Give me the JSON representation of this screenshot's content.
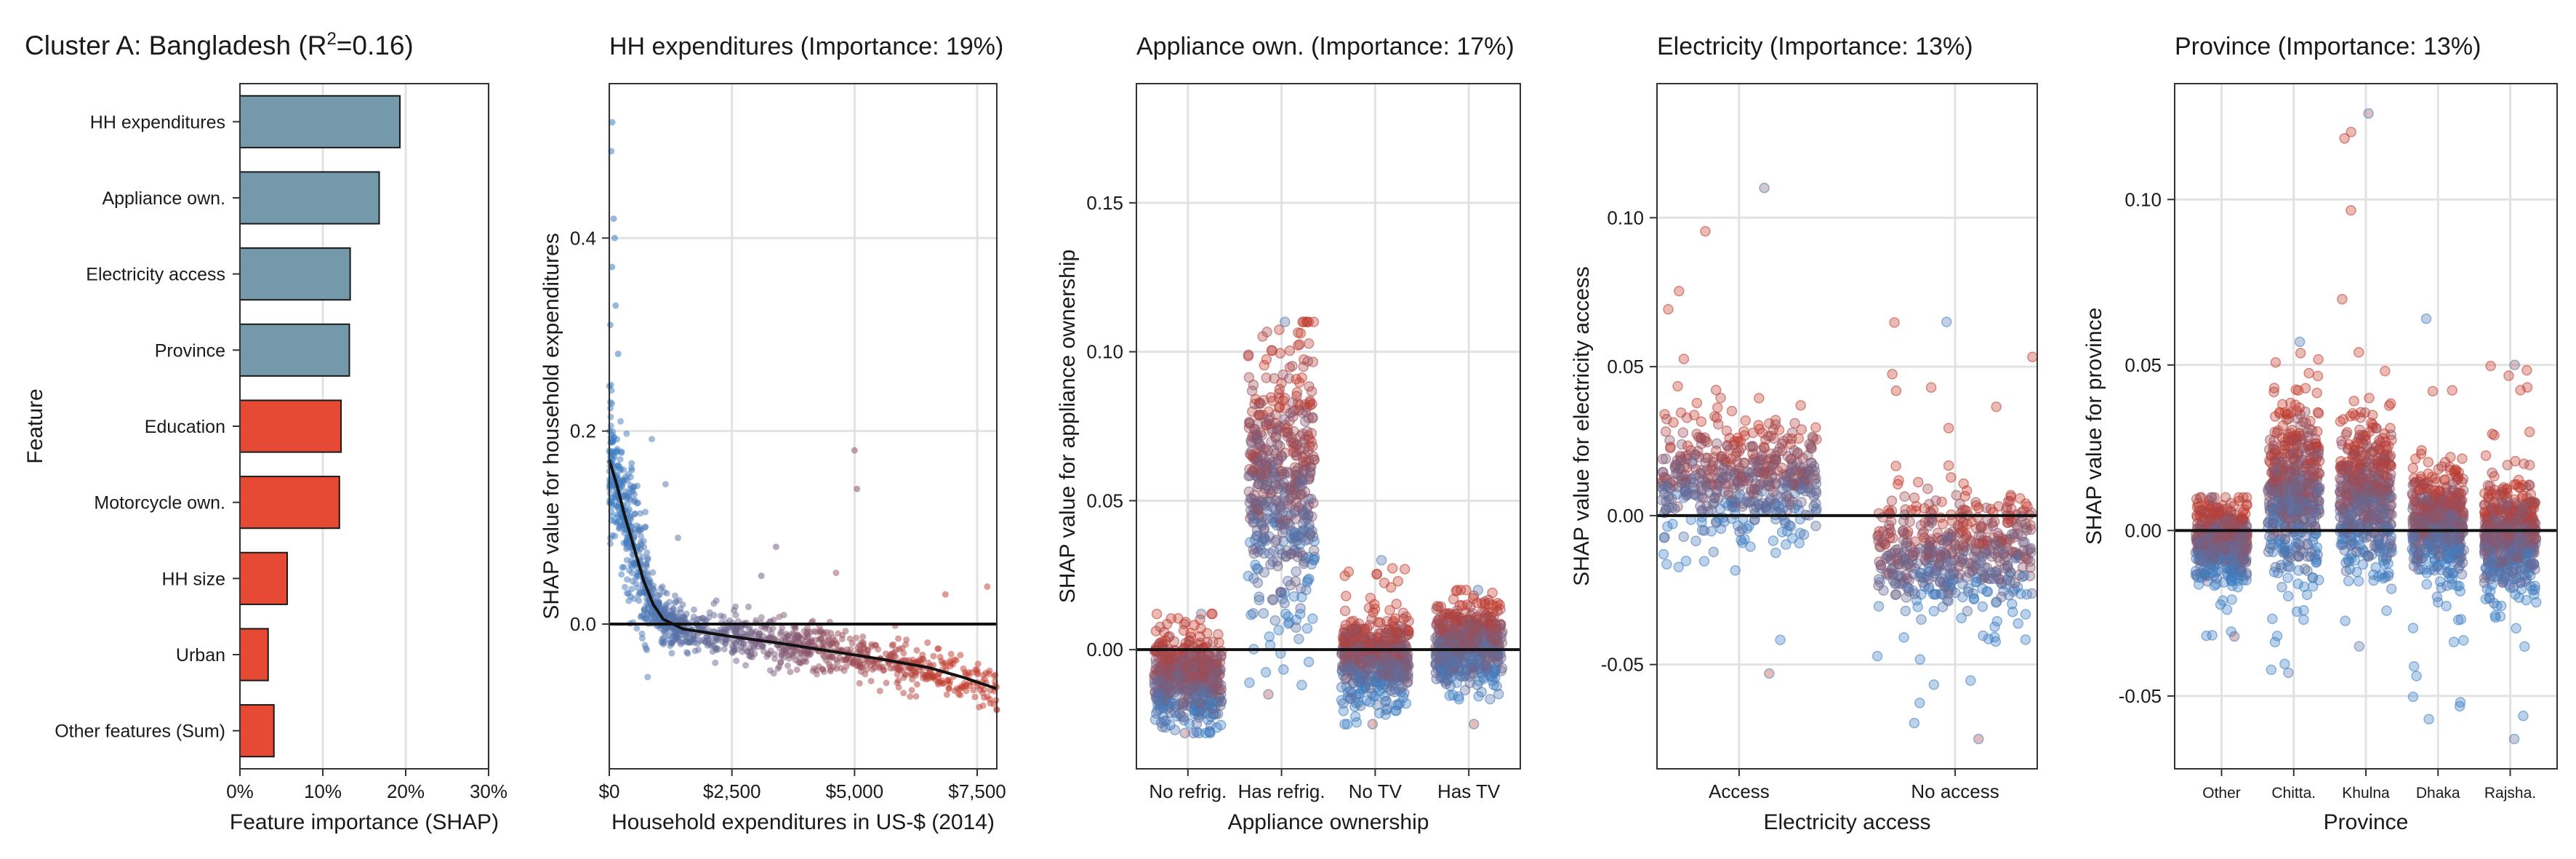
{
  "chart_data": [
    {
      "type": "bar",
      "title": "Cluster A: Bangladesh (R",
      "title_sup": "2",
      "title_tail": "=0.16)",
      "xlabel": "Feature importance (SHAP)",
      "ylabel": "Feature",
      "xlim": [
        0,
        30
      ],
      "xticks": [
        0,
        10,
        20,
        30
      ],
      "xtick_labels": [
        "0%",
        "10%",
        "20%",
        "30%"
      ],
      "categories": [
        "HH expenditures",
        "Appliance own.",
        "Electricity access",
        "Province",
        "Education",
        "Motorcycle own.",
        "HH size",
        "Urban",
        "Other features (Sum)"
      ],
      "values": [
        19.3,
        16.8,
        13.3,
        13.2,
        12.2,
        12.0,
        5.7,
        3.4,
        4.1
      ],
      "colors": [
        "#7399aa",
        "#7399aa",
        "#7399aa",
        "#7399aa",
        "#e64a35",
        "#e64a35",
        "#e64a35",
        "#e64a35",
        "#e64a35"
      ],
      "grid": true
    },
    {
      "type": "scatter",
      "title": "HH expenditures (Importance: 19%)",
      "xlabel": "Household expenditures in US-$ (2014)",
      "ylabel": "SHAP value for household expenditures",
      "xlim": [
        0,
        7900
      ],
      "ylim": [
        -0.15,
        0.56
      ],
      "xticks": [
        0,
        2500,
        5000,
        7500
      ],
      "xtick_labels": [
        "$0",
        "$2,500",
        "$5,000",
        "$7,500"
      ],
      "yticks": [
        0.0,
        0.2,
        0.4
      ],
      "ytick_labels": [
        "0.0",
        "0.2",
        "0.4"
      ],
      "color_low": "#3d7fc4",
      "color_high": "#c23a2c",
      "smooth_line": [
        [
          0,
          0.17
        ],
        [
          150,
          0.145
        ],
        [
          300,
          0.115
        ],
        [
          500,
          0.08
        ],
        [
          700,
          0.045
        ],
        [
          900,
          0.02
        ],
        [
          1100,
          0.005
        ],
        [
          1500,
          -0.005
        ],
        [
          2500,
          -0.013
        ],
        [
          3500,
          -0.02
        ],
        [
          4500,
          -0.028
        ],
        [
          5500,
          -0.036
        ],
        [
          6500,
          -0.045
        ],
        [
          7200,
          -0.055
        ],
        [
          7900,
          -0.067
        ]
      ],
      "grid": true
    },
    {
      "type": "scatter",
      "title": "Appliance own. (Importance: 17%)",
      "xlabel": "Appliance ownership",
      "ylabel": "SHAP value for appliance ownership",
      "categories": [
        "No refrig.",
        "Has refrig.",
        "No TV",
        "Has TV"
      ],
      "ylim": [
        -0.04,
        0.19
      ],
      "yticks": [
        0.0,
        0.05,
        0.1,
        0.15
      ],
      "ytick_labels": [
        "0.00",
        "0.05",
        "0.10",
        "0.15"
      ],
      "groups": [
        {
          "center": -0.01,
          "spread": 0.008,
          "min": -0.028,
          "max": 0.012
        },
        {
          "center": 0.055,
          "spread": 0.022,
          "min": -0.015,
          "max": 0.11
        },
        {
          "center": -0.003,
          "spread": 0.007,
          "min": -0.025,
          "max": 0.03
        },
        {
          "center": 0.002,
          "spread": 0.007,
          "min": -0.025,
          "max": 0.02
        }
      ],
      "grid": true
    },
    {
      "type": "scatter",
      "title": "Electricity (Importance: 13%)",
      "xlabel": "Electricity access",
      "ylabel": "SHAP value for electricity access",
      "categories": [
        "Access",
        "No access"
      ],
      "ylim": [
        -0.085,
        0.145
      ],
      "yticks": [
        -0.05,
        0.0,
        0.05,
        0.1
      ],
      "ytick_labels": [
        "-0.05",
        "0.00",
        "0.05",
        "0.10"
      ],
      "groups": [
        {
          "center": 0.012,
          "spread": 0.01,
          "min": -0.053,
          "max": 0.11
        },
        {
          "center": -0.013,
          "spread": 0.01,
          "min": -0.075,
          "max": 0.065
        }
      ],
      "grid": true
    },
    {
      "type": "scatter",
      "title": "Province (Importance: 13%)",
      "xlabel": "Province",
      "ylabel": "SHAP value for province",
      "categories": [
        "Other",
        "Chitta.",
        "Khulna",
        "Dhaka",
        "Rajsha."
      ],
      "ylim": [
        -0.072,
        0.135
      ],
      "yticks": [
        -0.05,
        0.0,
        0.05,
        0.1
      ],
      "ytick_labels": [
        "-0.05",
        "0.00",
        "0.05",
        "0.10"
      ],
      "groups": [
        {
          "center": -0.003,
          "spread": 0.006,
          "min": -0.032,
          "max": 0.01
        },
        {
          "center": 0.012,
          "spread": 0.012,
          "min": -0.043,
          "max": 0.057
        },
        {
          "center": 0.01,
          "spread": 0.011,
          "min": -0.035,
          "max": 0.126
        },
        {
          "center": 0.003,
          "spread": 0.008,
          "min": -0.057,
          "max": 0.064
        },
        {
          "center": -0.002,
          "spread": 0.008,
          "min": -0.063,
          "max": 0.05
        }
      ],
      "grid": true
    }
  ]
}
